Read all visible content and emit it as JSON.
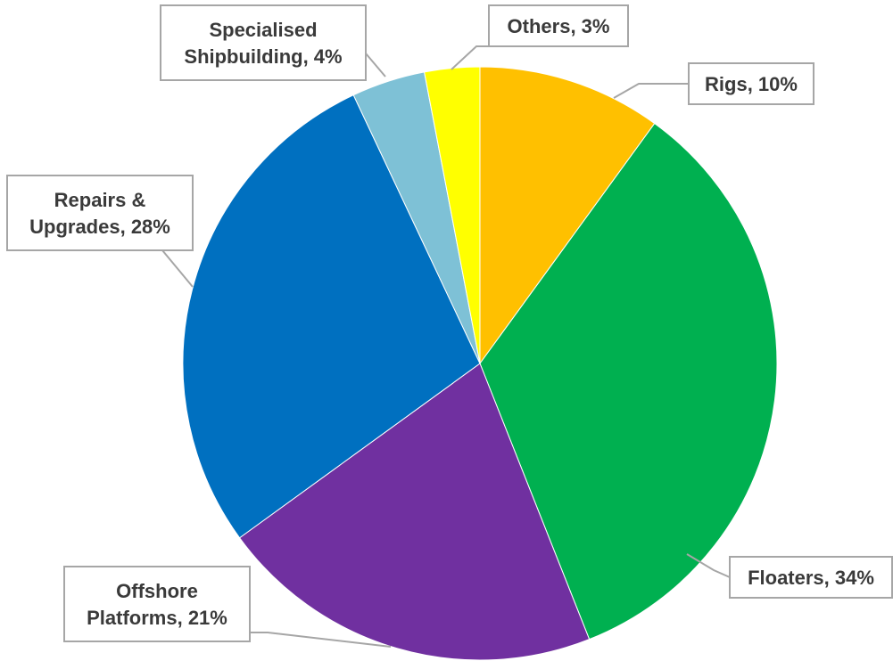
{
  "chart_data": {
    "type": "pie",
    "start_angle_deg": 0,
    "direction": "clockwise",
    "slices": [
      {
        "key": "rigs",
        "label_lines": [
          "Rigs, 10%"
        ],
        "value": 10,
        "color": "#FFC000"
      },
      {
        "key": "floaters",
        "label_lines": [
          "Floaters, 34%"
        ],
        "value": 34,
        "color": "#00B050"
      },
      {
        "key": "offshore-platforms",
        "label_lines": [
          "Offshore",
          "Platforms, 21%"
        ],
        "value": 21,
        "color": "#7030A0"
      },
      {
        "key": "repairs-upgrades",
        "label_lines": [
          "Repairs &",
          "Upgrades, 28%"
        ],
        "value": 28,
        "color": "#0070C0"
      },
      {
        "key": "specialised-shipbuilding",
        "label_lines": [
          "Specialised",
          "Shipbuilding, 4%"
        ],
        "value": 4,
        "color": "#7EC1D6"
      },
      {
        "key": "others",
        "label_lines": [
          "Others, 3%"
        ],
        "value": 3,
        "color": "#FFFF00"
      }
    ]
  }
}
